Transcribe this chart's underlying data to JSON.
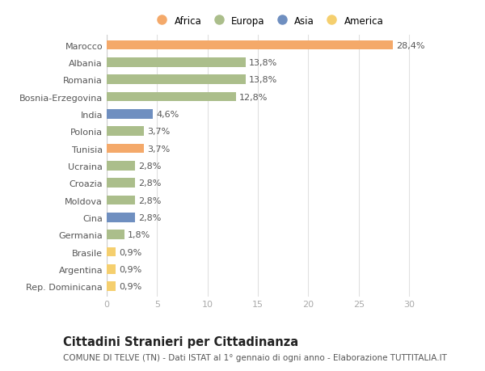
{
  "categories": [
    "Marocco",
    "Albania",
    "Romania",
    "Bosnia-Erzegovina",
    "India",
    "Polonia",
    "Tunisia",
    "Ucraina",
    "Croazia",
    "Moldova",
    "Cina",
    "Germania",
    "Brasile",
    "Argentina",
    "Rep. Dominicana"
  ],
  "values": [
    28.4,
    13.8,
    13.8,
    12.8,
    4.6,
    3.7,
    3.7,
    2.8,
    2.8,
    2.8,
    2.8,
    1.8,
    0.9,
    0.9,
    0.9
  ],
  "labels": [
    "28,4%",
    "13,8%",
    "13,8%",
    "12,8%",
    "4,6%",
    "3,7%",
    "3,7%",
    "2,8%",
    "2,8%",
    "2,8%",
    "2,8%",
    "1,8%",
    "0,9%",
    "0,9%",
    "0,9%"
  ],
  "continents": [
    "Africa",
    "Europa",
    "Europa",
    "Europa",
    "Asia",
    "Europa",
    "Africa",
    "Europa",
    "Europa",
    "Europa",
    "Asia",
    "Europa",
    "America",
    "America",
    "America"
  ],
  "colors": {
    "Africa": "#F4A96A",
    "Europa": "#ABBE8B",
    "Asia": "#6F8FC0",
    "America": "#F5CF6E"
  },
  "legend_order": [
    "Africa",
    "Europa",
    "Asia",
    "America"
  ],
  "xlim": [
    0,
    32
  ],
  "xticks": [
    0,
    5,
    10,
    15,
    20,
    25,
    30
  ],
  "title": "Cittadini Stranieri per Cittadinanza",
  "subtitle": "COMUNE DI TELVE (TN) - Dati ISTAT al 1° gennaio di ogni anno - Elaborazione TUTTITALIA.IT",
  "background_color": "#ffffff",
  "bar_height": 0.55,
  "label_fontsize": 8,
  "tick_fontsize": 8,
  "title_fontsize": 10.5,
  "subtitle_fontsize": 7.5
}
